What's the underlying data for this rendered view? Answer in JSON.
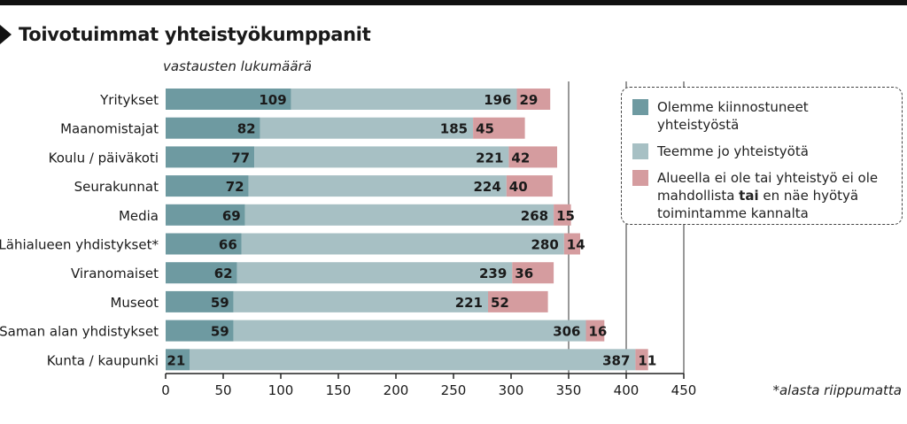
{
  "title": "Toivotuimmat yhteistyökumppanit",
  "footnote": "*alasta riippumatta",
  "chart_data": {
    "type": "bar",
    "orientation": "horizontal",
    "stacked": true,
    "title": "Toivotuimmat yhteistyökumppanit",
    "ylabel": "vastausten lukumäärä",
    "xlim": [
      0,
      450
    ],
    "x_ticks": [
      "0",
      "50",
      "100",
      "150",
      "200",
      "250",
      "300",
      "350",
      "400",
      "450"
    ],
    "grid": "vertical lines at 350, 400, 450",
    "legend_placement": "right",
    "categories": [
      "Yritykset",
      "Maanomistajat",
      "Koulu / päiväkoti",
      "Seurakunnat",
      "Media",
      "Lähialueen yhdistykset*",
      "Viranomaiset",
      "Museot",
      "Saman alan yhdistykset",
      "Kunta / kaupunki"
    ],
    "series": [
      {
        "name": "Olemme kiinnostuneet yhteistyöstä",
        "color": "#6e9aa1",
        "values": [
          109,
          82,
          77,
          72,
          69,
          66,
          62,
          59,
          59,
          21
        ]
      },
      {
        "name": "Teemme jo yhteistyötä",
        "color": "#a7c0c4",
        "values": [
          196,
          185,
          221,
          224,
          268,
          280,
          239,
          221,
          306,
          387
        ]
      },
      {
        "name": "Alueella ei ole tai yhteistyö ei ole mahdollista tai en näe hyötyä toimintamme kannalta",
        "color": "#d59c9f",
        "values": [
          29,
          45,
          42,
          40,
          15,
          14,
          36,
          52,
          16,
          11
        ]
      }
    ]
  },
  "legend": {
    "item1": "Olemme kiinnostuneet yhteistyöstä",
    "item2": "Teemme jo yhteistyötä",
    "item3_before": "Alueella ei ole tai yhteistyö ei ole mahdollista ",
    "item3_bold": "tai",
    "item3_after": " en näe hyötyä toimintamme kannalta"
  },
  "colors": {
    "interested": "#6e9aa1",
    "cooperating": "#a7c0c4",
    "not_possible": "#d59c9f"
  }
}
